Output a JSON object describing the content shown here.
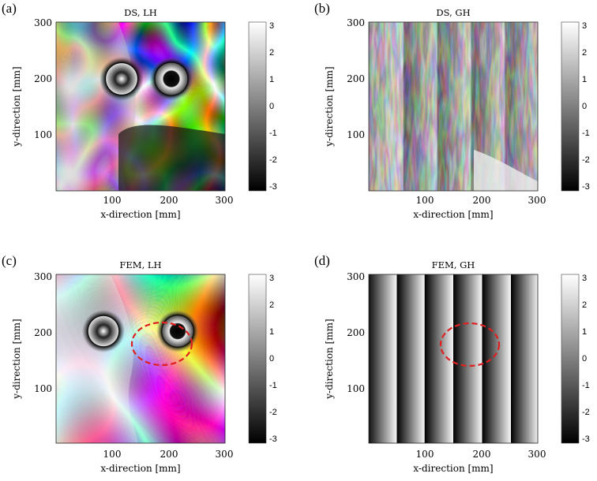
{
  "figure": {
    "panels": [
      "a",
      "b",
      "c",
      "d"
    ]
  },
  "chart_data": [
    {
      "type": "heatmap",
      "label": "(a)",
      "title": "DS, LH",
      "xlabel": "x-direction [mm]",
      "ylabel": "y-direction [mm]",
      "xticks": [
        "100",
        "200",
        "300"
      ],
      "yticks": [
        "100",
        "200",
        "300"
      ],
      "xlim": [
        0,
        300
      ],
      "ylim": [
        0,
        300
      ],
      "colorbar": {
        "ticks": [
          "3",
          "2",
          "1",
          "0",
          "-1",
          "-2",
          "-3"
        ],
        "range": [
          -3.14,
          3.14
        ],
        "colormap": "gray"
      },
      "pattern": "wrapped phase map with two circular fringe rings near (125,200) and (215,200)",
      "ellipse": false
    },
    {
      "type": "heatmap",
      "label": "(b)",
      "title": "DS, GH",
      "xlabel": "x-direction [mm]",
      "ylabel": "y-direction [mm]",
      "xticks": [
        "100",
        "200",
        "300"
      ],
      "yticks": [
        "100",
        "200",
        "300"
      ],
      "xlim": [
        0,
        300
      ],
      "ylim": [
        0,
        300
      ],
      "colorbar": {
        "ticks": [
          "3",
          "2",
          "1",
          "0",
          "-1",
          "-2",
          "-3"
        ],
        "range": [
          -3.14,
          3.14
        ],
        "colormap": "gray"
      },
      "pattern": "noisy vertical wrapped phase fringes",
      "ellipse": false
    },
    {
      "type": "heatmap",
      "label": "(c)",
      "title": "FEM, LH",
      "xlabel": "x-direction [mm]",
      "ylabel": "y-direction [mm]",
      "xticks": [
        "100",
        "200",
        "300"
      ],
      "yticks": [
        "100",
        "200",
        "300"
      ],
      "xlim": [
        0,
        300
      ],
      "ylim": [
        0,
        300
      ],
      "colorbar": {
        "ticks": [
          "3",
          "2",
          "1",
          "0",
          "-1",
          "-2",
          "-3"
        ],
        "range": [
          -3.14,
          3.14
        ],
        "colormap": "gray"
      },
      "pattern": "simulated wrapped phase map with two circular rings",
      "ellipse": true,
      "ellipse_color": "#e02020"
    },
    {
      "type": "heatmap",
      "label": "(d)",
      "title": "FEM, GH",
      "xlabel": "x-direction [mm]",
      "ylabel": "y-direction [mm]",
      "xticks": [
        "100",
        "200",
        "300"
      ],
      "yticks": [
        "100",
        "200",
        "300"
      ],
      "xlim": [
        0,
        300
      ],
      "ylim": [
        0,
        300
      ],
      "colorbar": {
        "ticks": [
          "3",
          "2",
          "1",
          "0",
          "-1",
          "-2",
          "-3"
        ],
        "range": [
          -3.14,
          3.14
        ],
        "colormap": "gray"
      },
      "pattern": "simulated curved vertical wrapped phase fringes",
      "ellipse": true,
      "ellipse_color": "#e02020"
    }
  ]
}
